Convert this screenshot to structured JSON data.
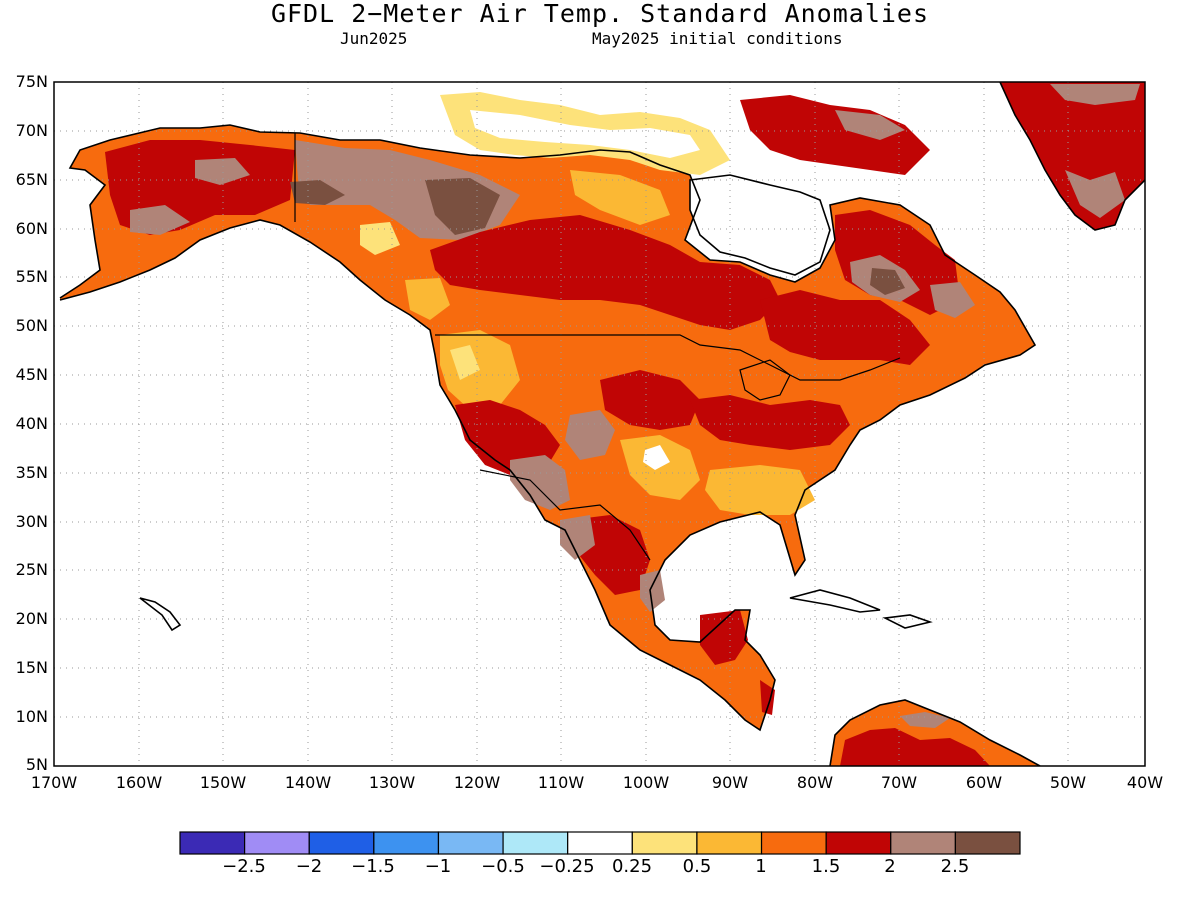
{
  "header": {
    "title": "GFDL 2−Meter Air Temp. Standard Anomalies",
    "valid_month": "Jun2025",
    "init_note": "May2025 initial conditions"
  },
  "axes": {
    "lat_labels": [
      "75N",
      "70N",
      "65N",
      "60N",
      "55N",
      "50N",
      "45N",
      "40N",
      "35N",
      "30N",
      "25N",
      "20N",
      "15N",
      "10N",
      "5N"
    ],
    "lon_labels": [
      "170W",
      "160W",
      "150W",
      "140W",
      "130W",
      "120W",
      "110W",
      "100W",
      "90W",
      "80W",
      "70W",
      "60W",
      "50W",
      "40W"
    ]
  },
  "colorbar": {
    "colors": [
      "#3b2ab5",
      "#a08cf5",
      "#1f5fe6",
      "#3d92f0",
      "#79b8f4",
      "#aee8f8",
      "#ffffff",
      "#fde27a",
      "#fbb834",
      "#f76b0e",
      "#c00505",
      "#b08478",
      "#7a5040"
    ],
    "labels": [
      "−2.5",
      "−2",
      "−1.5",
      "−1",
      "−0.5",
      "−0.25",
      "0.25",
      "0.5",
      "1",
      "1.5",
      "2",
      "2.5"
    ]
  },
  "palette": {
    "ocean": "#ffffff",
    "coast": "#000000",
    "grid": "#9a9a9a"
  }
}
